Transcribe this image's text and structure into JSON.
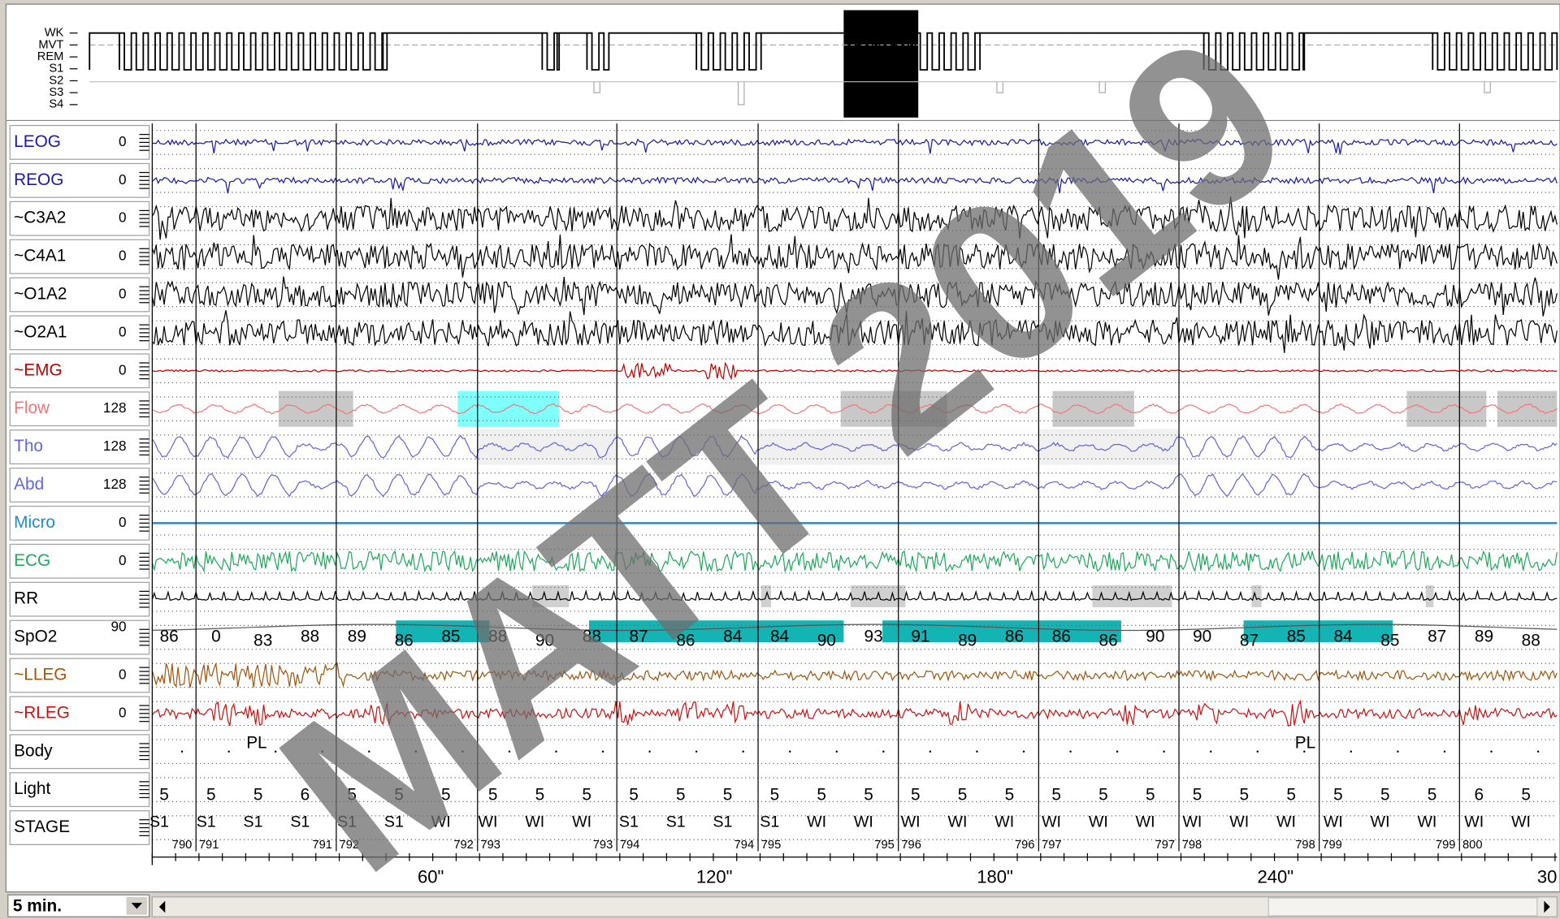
{
  "hypnogram": {
    "labels": [
      "WK",
      "MVT",
      "REM",
      "S1",
      "S2",
      "S3",
      "S4"
    ]
  },
  "channels": [
    {
      "label": "LEOG",
      "scale": "0",
      "color": "#1a1aa8"
    },
    {
      "label": "REOG",
      "scale": "0",
      "color": "#1a1aa8"
    },
    {
      "label": "~C3A2",
      "scale": "0",
      "color": "#000000"
    },
    {
      "label": "~C4A1",
      "scale": "0",
      "color": "#000000"
    },
    {
      "label": "~O1A2",
      "scale": "0",
      "color": "#000000"
    },
    {
      "label": "~O2A1",
      "scale": "0",
      "color": "#000000"
    },
    {
      "label": "~EMG",
      "scale": "0",
      "color": "#c00000"
    },
    {
      "label": "Flow",
      "scale": "128",
      "color": "#f07878"
    },
    {
      "label": "Tho",
      "scale": "128",
      "color": "#6464e0"
    },
    {
      "label": "Abd",
      "scale": "128",
      "color": "#6464e0"
    },
    {
      "label": "Micro",
      "scale": "0",
      "color": "#1e8cd2"
    },
    {
      "label": "ECG",
      "scale": "0",
      "color": "#1eaa5a"
    },
    {
      "label": "RR",
      "color": "#000000"
    },
    {
      "label": "SpO2",
      "scale": "90",
      "color": "#000000"
    },
    {
      "label": "~LLEG",
      "scale": "0",
      "color": "#a0560e"
    },
    {
      "label": "~RLEG",
      "scale": "0",
      "color": "#d01010"
    },
    {
      "label": "Body",
      "color": "#000000"
    },
    {
      "label": "Light",
      "color": "#000000"
    },
    {
      "label": "STAGE",
      "color": "#000000"
    }
  ],
  "spo2_values": [
    "86",
    "0",
    "83",
    "88",
    "89",
    "86",
    "85",
    "88",
    "90",
    "88",
    "87",
    "86",
    "84",
    "84",
    "90",
    "93",
    "91",
    "89",
    "86",
    "86",
    "86",
    "90",
    "90",
    "87",
    "85",
    "84",
    "85",
    "87",
    "89",
    "88"
  ],
  "light_values": [
    "5",
    "5",
    "5",
    "6",
    "5",
    "5",
    "5",
    "5",
    "5",
    "5",
    "5",
    "5",
    "5",
    "5",
    "5",
    "5",
    "5",
    "5",
    "5",
    "5",
    "5",
    "5",
    "5",
    "5",
    "5",
    "5",
    "5",
    "5",
    "6",
    "5"
  ],
  "stage_labels": [
    "S1",
    "S1",
    "S1",
    "S1",
    "S1",
    "S1",
    "WI",
    "WI",
    "WI",
    "WI",
    "S1",
    "S1",
    "S1",
    "S1",
    "WI",
    "WI",
    "WI",
    "WI",
    "WI",
    "WI",
    "WI",
    "WI",
    "WI",
    "WI",
    "WI",
    "WI",
    "WI",
    "WI",
    "WI",
    "WI"
  ],
  "epoch_numbers": [
    "790",
    "791",
    "791",
    "792",
    "792",
    "793",
    "793",
    "794",
    "794",
    "795",
    "795",
    "796",
    "796",
    "797",
    "797",
    "798",
    "798",
    "799",
    "799",
    "800"
  ],
  "body_labels": [
    "PL",
    "PL"
  ],
  "time_axis": [
    "60\"",
    "120\"",
    "180\"",
    "240\"",
    "30"
  ],
  "zoom": "5 min.",
  "watermark": "MATT 2019"
}
